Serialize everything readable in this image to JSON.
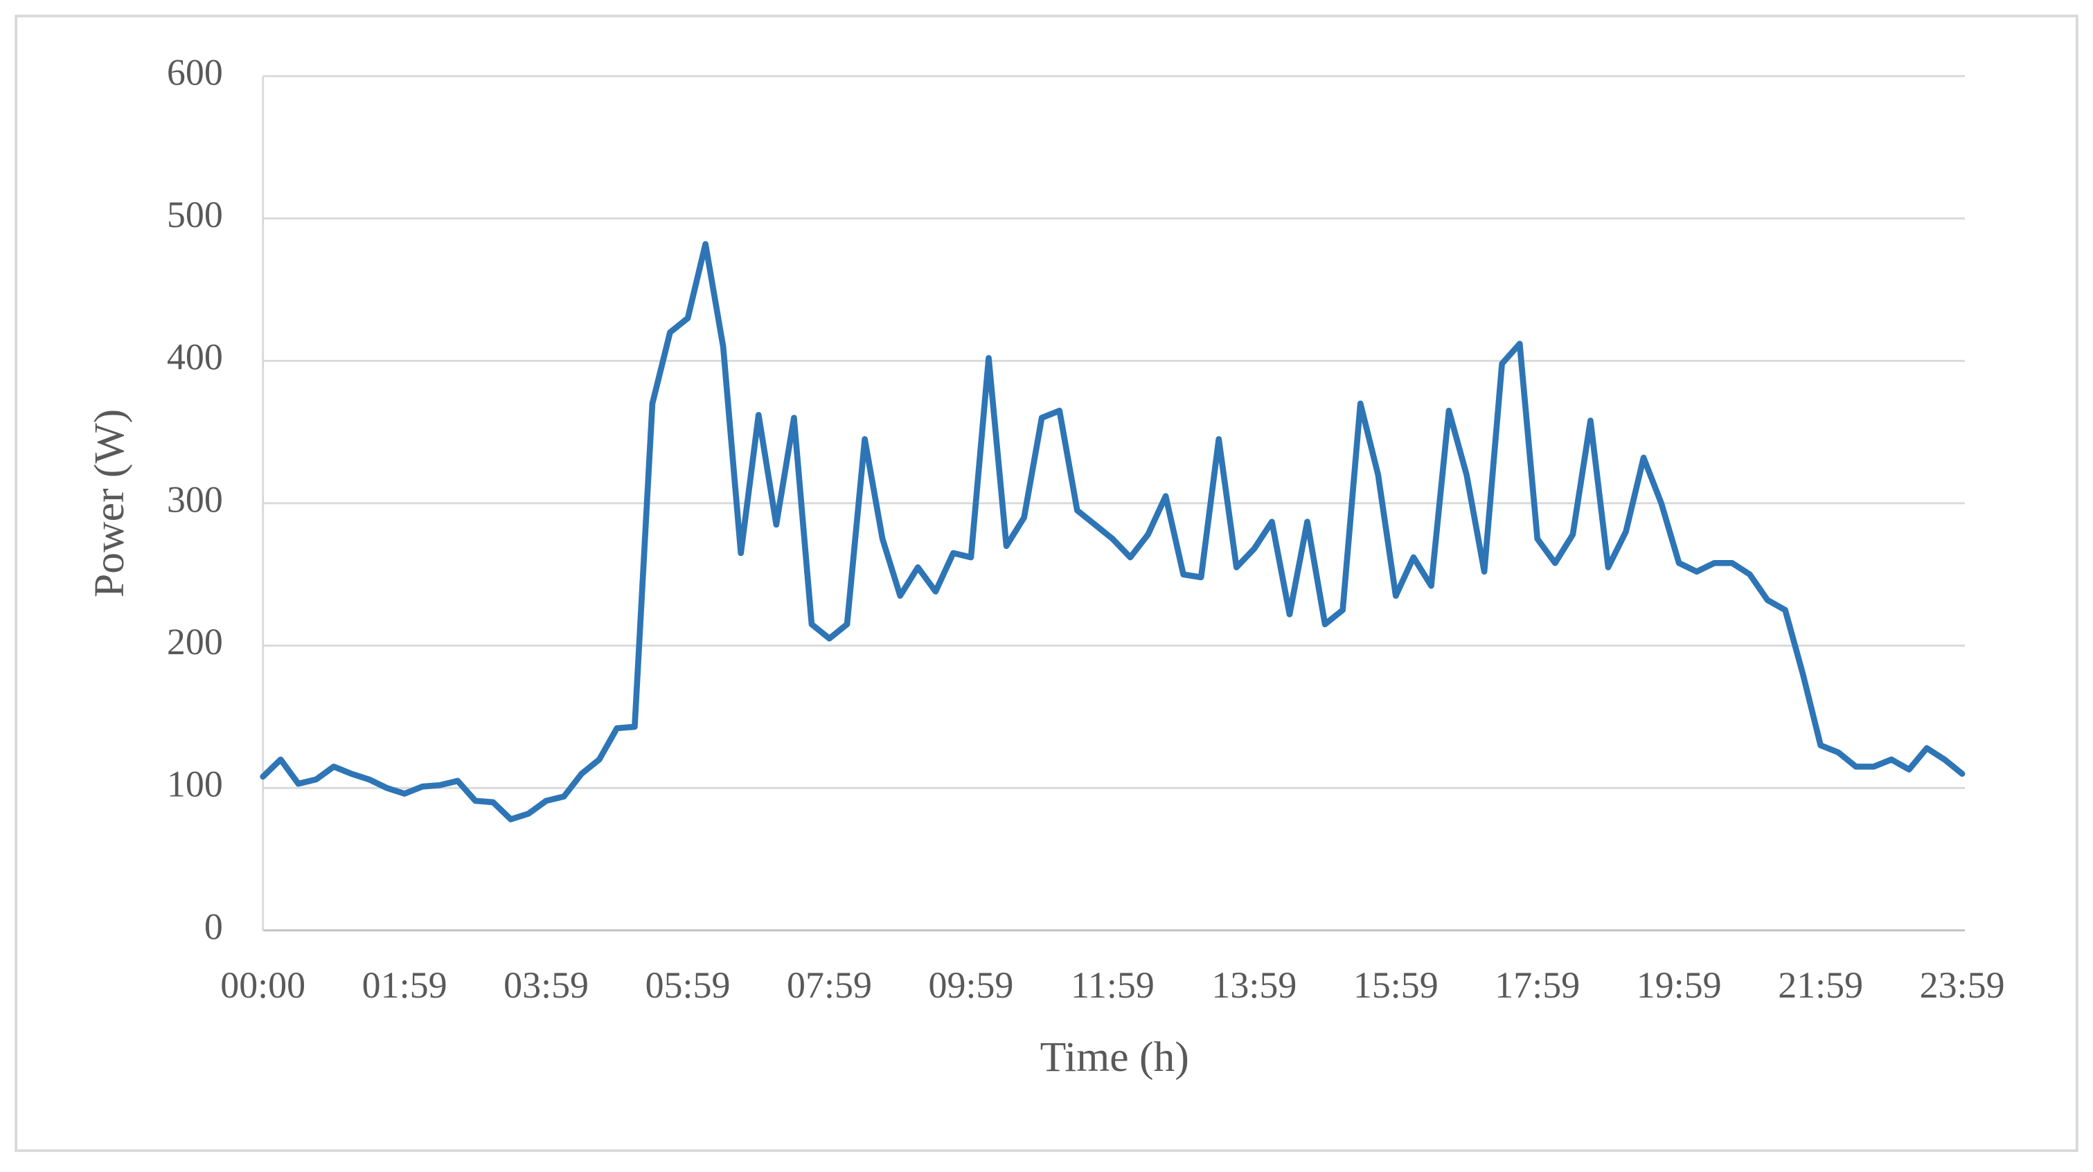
{
  "chart_data": {
    "type": "line",
    "x_label": "Time (h)",
    "y_label": "Power (W)",
    "categories": [
      "00:00",
      null,
      null,
      null,
      null,
      null,
      null,
      null,
      "01:59",
      null,
      null,
      null,
      null,
      null,
      null,
      null,
      "03:59",
      null,
      null,
      null,
      null,
      null,
      null,
      null,
      "05:59",
      null,
      null,
      null,
      null,
      null,
      null,
      null,
      "07:59",
      null,
      null,
      null,
      null,
      null,
      null,
      null,
      "09:59",
      null,
      null,
      null,
      null,
      null,
      null,
      null,
      "11:59",
      null,
      null,
      null,
      null,
      null,
      null,
      null,
      "13:59",
      null,
      null,
      null,
      null,
      null,
      null,
      null,
      "15:59",
      null,
      null,
      null,
      null,
      null,
      null,
      null,
      "17:59",
      null,
      null,
      null,
      null,
      null,
      null,
      null,
      "19:59",
      null,
      null,
      null,
      null,
      null,
      null,
      null,
      "21:59",
      null,
      null,
      null,
      null,
      null,
      null,
      null,
      "23:59"
    ],
    "series": [
      {
        "name": "Power",
        "color": "#2e75b6",
        "values": [
          108,
          120,
          103,
          106,
          115,
          110,
          106,
          100,
          96,
          101,
          102,
          105,
          91,
          90,
          78,
          82,
          91,
          94,
          110,
          120,
          142,
          143,
          370,
          420,
          430,
          482,
          410,
          265,
          362,
          285,
          360,
          215,
          205,
          215,
          345,
          275,
          235,
          255,
          238,
          265,
          262,
          402,
          270,
          290,
          360,
          365,
          295,
          285,
          275,
          262,
          278,
          305,
          250,
          248,
          345,
          255,
          268,
          287,
          222,
          287,
          215,
          225,
          370,
          320,
          235,
          262,
          242,
          365,
          320,
          252,
          398,
          412,
          275,
          258,
          278,
          358,
          255,
          280,
          332,
          300,
          258,
          252,
          258,
          258,
          250,
          232,
          225,
          180,
          130,
          125,
          115,
          115,
          120,
          113,
          128,
          120,
          110
        ]
      }
    ],
    "ylim": [
      0,
      600
    ],
    "yticks": [
      0,
      100,
      200,
      300,
      400,
      500,
      600
    ],
    "grid": true
  }
}
